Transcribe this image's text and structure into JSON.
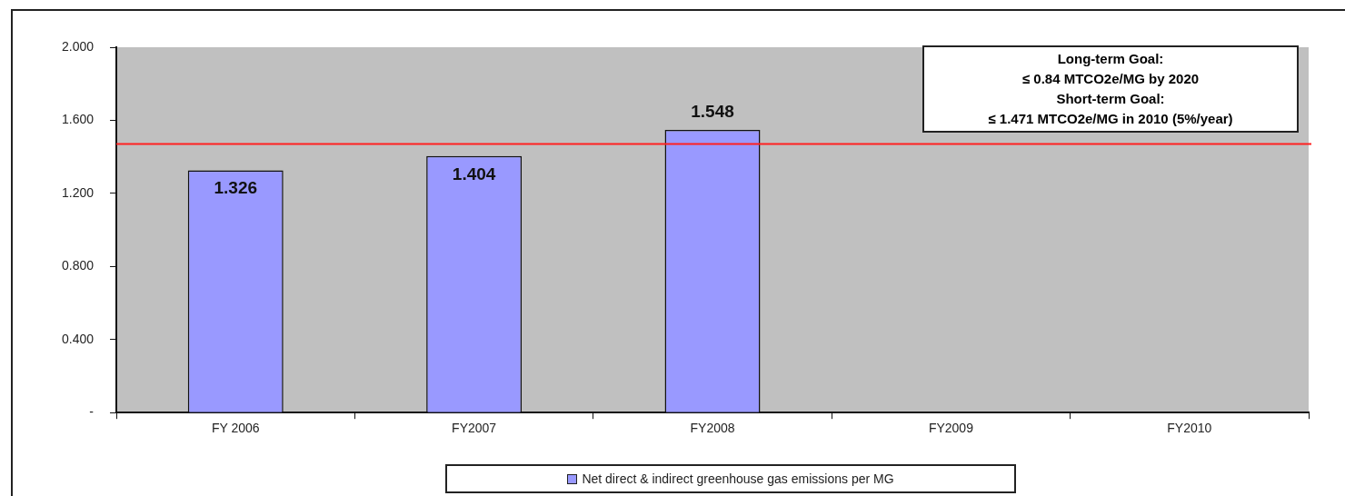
{
  "chart_data": {
    "type": "bar",
    "categories": [
      "FY 2006",
      "FY2007",
      "FY2008",
      "FY2009",
      "FY2010"
    ],
    "series": [
      {
        "name": "Net direct & indirect greenhouse gas emissions per MG",
        "color": "#9999ff",
        "values": [
          1.326,
          1.404,
          1.548,
          null,
          null
        ]
      }
    ],
    "ylim": [
      0,
      2.0
    ],
    "yticks": [
      {
        "value": 0,
        "label": "-"
      },
      {
        "value": 0.4,
        "label": "0.400"
      },
      {
        "value": 0.8,
        "label": "0.800"
      },
      {
        "value": 1.2,
        "label": "1.200"
      },
      {
        "value": 1.6,
        "label": "1.600"
      },
      {
        "value": 2.0,
        "label": "2.000"
      }
    ],
    "ref_lines": [
      {
        "axis": "y",
        "value": 1.471,
        "color": "#ff2020"
      }
    ],
    "annotations": [
      "Long-term Goal:",
      "≤ 0.84 MTCO2e/MG by 2020",
      "Short-term Goal:",
      "≤ 1.471 MTCO2e/MG in 2010 (5%/year)"
    ],
    "data_labels": true,
    "grid": false,
    "legend": "bottom"
  }
}
